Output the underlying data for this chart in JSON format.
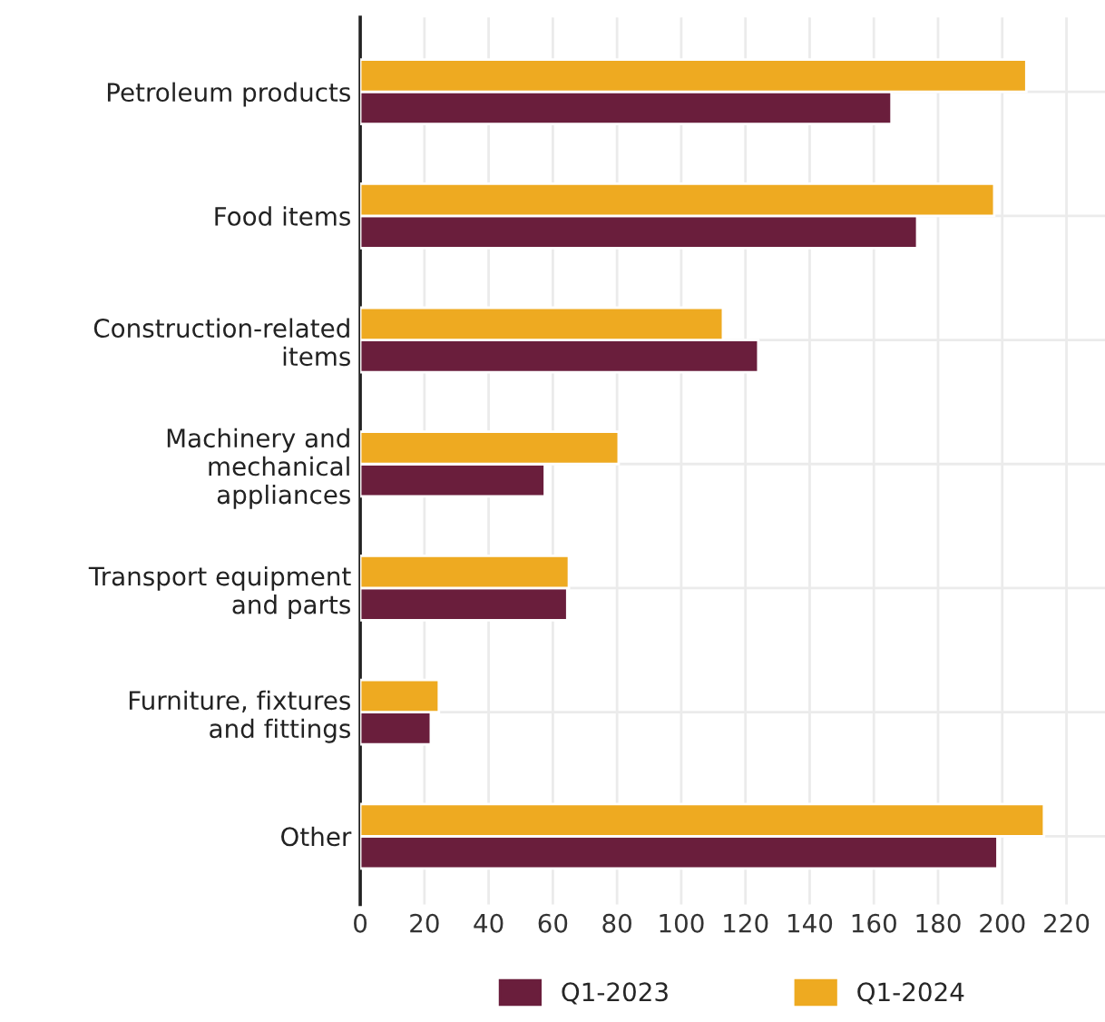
{
  "chart_data": {
    "type": "bar",
    "orientation": "horizontal",
    "categories": [
      "Petroleum products",
      "Food items",
      "Construction-related\nitems",
      "Machinery and\nmechanical\nappliances",
      "Transport equipment\nand parts",
      "Furniture, fixtures\nand fittings",
      "Other"
    ],
    "series": [
      {
        "name": "Q1-2023",
        "color": "#6a1e3c",
        "values": [
          165.5,
          173.5,
          124,
          57.5,
          64.5,
          22,
          198.5
        ]
      },
      {
        "name": "Q1-2024",
        "color": "#eeaa21",
        "values": [
          207.5,
          197.5,
          113,
          80.5,
          65,
          24.5,
          213
        ]
      }
    ],
    "xlim": [
      0,
      232
    ],
    "xticks": [
      0,
      20,
      40,
      60,
      80,
      100,
      120,
      140,
      160,
      180,
      200,
      220
    ],
    "grid": true,
    "legend": "bottom"
  }
}
